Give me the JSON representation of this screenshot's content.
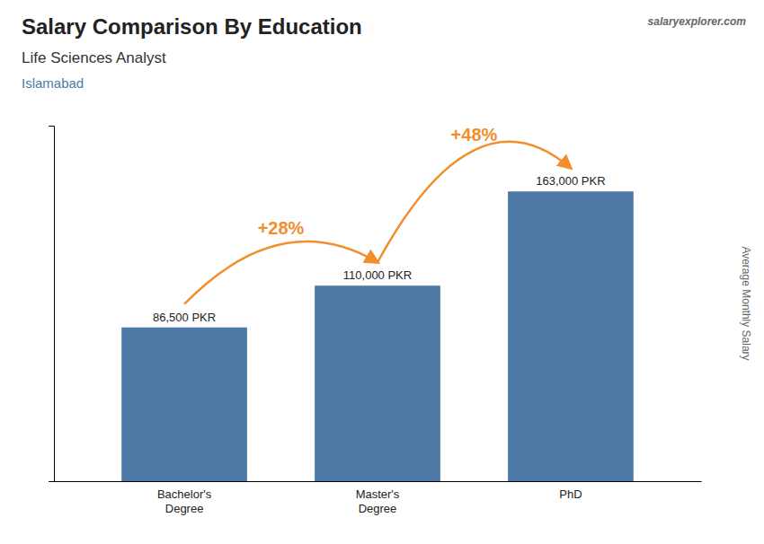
{
  "chart_data": {
    "type": "bar",
    "title": "Salary Comparison By Education",
    "subtitle": "Life Sciences Analyst",
    "location": "Islamabad",
    "watermark": "salaryexplorer.com",
    "ylabel": "Average Monthly Salary",
    "categories": [
      "Bachelor's\nDegree",
      "Master's\nDegree",
      "PhD"
    ],
    "values": [
      86500,
      110000,
      163000
    ],
    "value_labels": [
      "86,500 PKR",
      "110,000 PKR",
      "163,000 PKR"
    ],
    "data_labels": true,
    "annotations": [
      "+28%",
      "+48%"
    ],
    "ylim": [
      0,
      200000
    ],
    "tick_labels": "x",
    "grid": false
  }
}
